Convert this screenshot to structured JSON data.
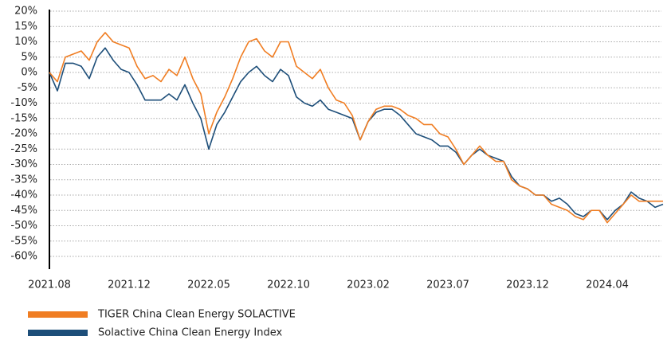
{
  "chart_data": {
    "type": "line",
    "categories": [
      "2021.08",
      null,
      null,
      null,
      null,
      null,
      null,
      null,
      null,
      null,
      "2021.12",
      null,
      null,
      null,
      null,
      null,
      null,
      null,
      null,
      null,
      "2022.05",
      null,
      null,
      null,
      null,
      null,
      null,
      null,
      null,
      null,
      "2022.10",
      null,
      null,
      null,
      null,
      null,
      null,
      null,
      null,
      null,
      "2023.02",
      null,
      null,
      null,
      null,
      null,
      null,
      null,
      null,
      null,
      "2023.07",
      null,
      null,
      null,
      null,
      null,
      null,
      null,
      null,
      null,
      "2023.12",
      null,
      null,
      null,
      null,
      null,
      null,
      null,
      null,
      null,
      "2024.04",
      null,
      null,
      null,
      null,
      null,
      null,
      null
    ],
    "series": [
      {
        "name": "TIGER China Clean Energy SOLACTIVE",
        "color": "#f07d22",
        "values": [
          0,
          -3,
          5,
          6,
          7,
          4,
          10,
          13,
          10,
          9,
          8,
          2,
          -2,
          -1,
          -3,
          1,
          -1,
          5,
          -2,
          -7,
          -20,
          -13,
          -8,
          -2,
          5,
          10,
          11,
          7,
          5,
          10,
          10,
          2,
          0,
          -2,
          1,
          -5,
          -9,
          -10,
          -14,
          -22,
          -16,
          -12,
          -11,
          -11,
          -12,
          -14,
          -15,
          -17,
          -17,
          -20,
          -21,
          -25,
          -30,
          -27,
          -24,
          -27,
          -29,
          -29,
          -35,
          -37,
          -38,
          -40,
          -40,
          -43,
          -44,
          -45,
          -47,
          -48,
          -45,
          -45,
          -49,
          -46,
          -43,
          -40,
          -42,
          -42,
          -42,
          -42
        ]
      },
      {
        "name": "Solactive China Clean Energy Index",
        "color": "#1d4e79",
        "values": [
          0,
          -6,
          3,
          3,
          2,
          -2,
          5,
          8,
          4,
          1,
          0,
          -4,
          -9,
          -9,
          -9,
          -7,
          -9,
          -4,
          -10,
          -15,
          -25,
          -17,
          -13,
          -8,
          -3,
          0,
          2,
          -1,
          -3,
          1,
          -1,
          -8,
          -10,
          -11,
          -9,
          -12,
          -13,
          -14,
          -15,
          -22,
          -16,
          -13,
          -12,
          -12,
          -14,
          -17,
          -20,
          -21,
          -22,
          -24,
          -24,
          -26,
          -30,
          -27,
          -25,
          -27,
          -28,
          -29,
          -34,
          -37,
          -38,
          -40,
          -40,
          -42,
          -41,
          -43,
          -46,
          -47,
          -45,
          -45,
          -48,
          -45,
          -43,
          -39,
          -41,
          -42,
          -44,
          -43
        ]
      }
    ],
    "ylim": [
      -60,
      20
    ],
    "yticks": [
      {
        "value": 20,
        "label": "20%"
      },
      {
        "value": 15,
        "label": "15%"
      },
      {
        "value": 10,
        "label": "10%"
      },
      {
        "value": 5,
        "label": "5%"
      },
      {
        "value": 0,
        "label": "0%"
      },
      {
        "value": -5,
        "label": "-5%"
      },
      {
        "value": -10,
        "label": "-10%"
      },
      {
        "value": -15,
        "label": "-15%"
      },
      {
        "value": -20,
        "label": "-20%"
      },
      {
        "value": -25,
        "label": "-25%"
      },
      {
        "value": -30,
        "label": "-30%"
      },
      {
        "value": -35,
        "label": "-35%"
      },
      {
        "value": -40,
        "label": "-40%"
      },
      {
        "value": -45,
        "label": "-45%"
      },
      {
        "value": -50,
        "label": "-50%"
      },
      {
        "value": -55,
        "label": "-55%"
      },
      {
        "value": -60,
        "label": "-60%"
      }
    ],
    "grid": true
  }
}
